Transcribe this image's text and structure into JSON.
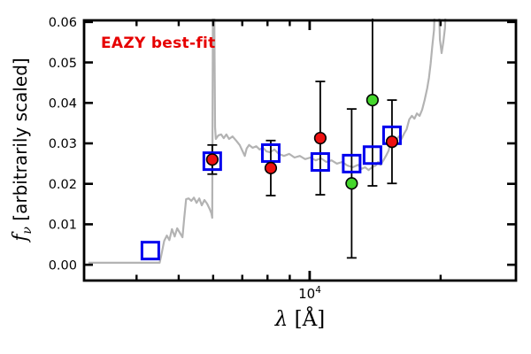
{
  "chart_data": {
    "type": "line",
    "annotation": "EAZY best-fit",
    "annotation_color": "#e60000",
    "xlabel_symbol": "λ",
    "xlabel_unit": " [Å]",
    "ylabel_symbol": "f",
    "ylabel_subscript": "ν",
    "ylabel_rest": " [arbitrarily scaled]",
    "x_scale": "log",
    "xlim": [
      3030,
      29800
    ],
    "ylim": [
      -0.0039,
      0.0604
    ],
    "grid": false,
    "legend": "none",
    "x_major_ticks": [
      10000
    ],
    "x_major_tick_label": {
      "base": "10",
      "exp": "4"
    },
    "x_minor_ticks": [
      4000,
      5000,
      6000,
      7000,
      8000,
      9000,
      20000
    ],
    "y_ticks": [
      0.0,
      0.01,
      0.02,
      0.03,
      0.04,
      0.05,
      0.06
    ],
    "y_tick_labels": [
      "0.00",
      "0.01",
      "0.02",
      "0.03",
      "0.04",
      "0.05",
      "0.06"
    ],
    "colors": {
      "spectrum": "#b3b3b3",
      "model_square": "#0000ee",
      "observed_circle": "#ee1111",
      "flagged_circle": "#44d62c",
      "marker_edge": "#000000",
      "errorbar": "#000000",
      "axis": "#000000"
    },
    "series": [
      {
        "name": "best-fit template spectrum",
        "type": "line",
        "points": [
          [
            3100,
            0.0005
          ],
          [
            4520,
            0.0005
          ],
          [
            4560,
            0.0024
          ],
          [
            4630,
            0.0059
          ],
          [
            4695,
            0.0072
          ],
          [
            4760,
            0.0061
          ],
          [
            4825,
            0.0088
          ],
          [
            4895,
            0.007
          ],
          [
            4960,
            0.009
          ],
          [
            5030,
            0.0079
          ],
          [
            5100,
            0.0068
          ],
          [
            5150,
            0.0116
          ],
          [
            5200,
            0.0162
          ],
          [
            5270,
            0.0164
          ],
          [
            5345,
            0.0158
          ],
          [
            5420,
            0.0166
          ],
          [
            5495,
            0.0153
          ],
          [
            5575,
            0.0164
          ],
          [
            5650,
            0.0147
          ],
          [
            5730,
            0.016
          ],
          [
            5810,
            0.0151
          ],
          [
            5890,
            0.0138
          ],
          [
            5945,
            0.0127
          ],
          [
            5972,
            0.0116
          ],
          [
            5995,
            0.07
          ],
          [
            6030,
            0.07
          ],
          [
            6060,
            0.034
          ],
          [
            6085,
            0.0311
          ],
          [
            6170,
            0.032
          ],
          [
            6260,
            0.0322
          ],
          [
            6345,
            0.0313
          ],
          [
            6435,
            0.0322
          ],
          [
            6525,
            0.0311
          ],
          [
            6650,
            0.0317
          ],
          [
            6775,
            0.0307
          ],
          [
            6905,
            0.0296
          ],
          [
            7000,
            0.0282
          ],
          [
            7095,
            0.0269
          ],
          [
            7165,
            0.0287
          ],
          [
            7260,
            0.0296
          ],
          [
            7395,
            0.0289
          ],
          [
            7535,
            0.0293
          ],
          [
            7675,
            0.0285
          ],
          [
            7815,
            0.0289
          ],
          [
            7960,
            0.028
          ],
          [
            8110,
            0.0278
          ],
          [
            8295,
            0.0285
          ],
          [
            8490,
            0.0274
          ],
          [
            8730,
            0.0269
          ],
          [
            8975,
            0.0274
          ],
          [
            9230,
            0.0265
          ],
          [
            9495,
            0.0269
          ],
          [
            9765,
            0.0261
          ],
          [
            10040,
            0.0265
          ],
          [
            10325,
            0.0258
          ],
          [
            10620,
            0.0263
          ],
          [
            10920,
            0.0254
          ],
          [
            11230,
            0.0258
          ],
          [
            11550,
            0.025
          ],
          [
            11880,
            0.0254
          ],
          [
            12215,
            0.0245
          ],
          [
            12560,
            0.0241
          ],
          [
            12920,
            0.0247
          ],
          [
            13165,
            0.0237
          ],
          [
            13410,
            0.0241
          ],
          [
            13660,
            0.0234
          ],
          [
            13915,
            0.0241
          ],
          [
            14175,
            0.0245
          ],
          [
            14370,
            0.0254
          ],
          [
            14570,
            0.0247
          ],
          [
            14770,
            0.0258
          ],
          [
            14975,
            0.0269
          ],
          [
            15185,
            0.0282
          ],
          [
            15395,
            0.0307
          ],
          [
            15605,
            0.0315
          ],
          [
            15820,
            0.0309
          ],
          [
            16040,
            0.0317
          ],
          [
            16260,
            0.0311
          ],
          [
            16485,
            0.0324
          ],
          [
            16710,
            0.0335
          ],
          [
            16940,
            0.0359
          ],
          [
            17175,
            0.0368
          ],
          [
            17410,
            0.0361
          ],
          [
            17645,
            0.0374
          ],
          [
            17890,
            0.0368
          ],
          [
            18135,
            0.0383
          ],
          [
            18380,
            0.0407
          ],
          [
            18630,
            0.0436
          ],
          [
            18800,
            0.0462
          ],
          [
            18970,
            0.0497
          ],
          [
            19140,
            0.0541
          ],
          [
            19310,
            0.058
          ],
          [
            19485,
            0.07
          ],
          [
            19750,
            0.07
          ],
          [
            19925,
            0.0556
          ],
          [
            20105,
            0.0523
          ],
          [
            20285,
            0.055
          ],
          [
            20465,
            0.0585
          ],
          [
            20650,
            0.07
          ]
        ]
      },
      {
        "name": "model photometry",
        "type": "scatter",
        "marker": "open-square",
        "points": [
          [
            4303,
            0.0035
          ],
          [
            5972,
            0.0256
          ],
          [
            8140,
            0.0276
          ],
          [
            10578,
            0.0254
          ],
          [
            12490,
            0.025
          ],
          [
            13945,
            0.0271
          ],
          [
            15462,
            0.032
          ]
        ]
      },
      {
        "name": "observed photometry",
        "type": "scatter",
        "marker": "filled-circle-red",
        "points_with_error": [
          [
            5972,
            0.026,
            0.0036
          ],
          [
            8140,
            0.0239,
            0.0068
          ],
          [
            10578,
            0.0313,
            0.014
          ],
          [
            15462,
            0.0304,
            0.0103
          ]
        ]
      },
      {
        "name": "flagged photometry",
        "type": "scatter",
        "marker": "filled-circle-green",
        "points_with_error": [
          [
            12490,
            0.0201,
            0.0184
          ],
          [
            13945,
            0.0407,
            0.0212
          ]
        ]
      }
    ]
  }
}
